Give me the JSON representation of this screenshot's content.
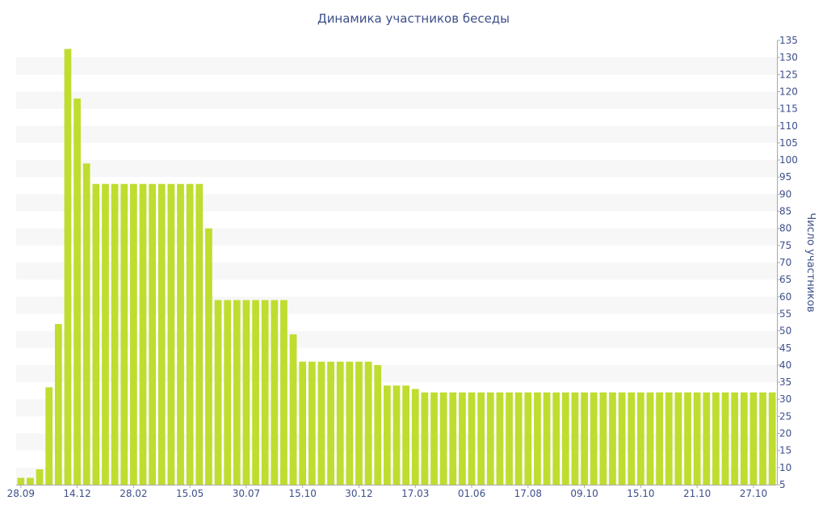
{
  "chart_data": {
    "type": "bar",
    "title": "Динамика участников беседы",
    "ylabel": "Число участников",
    "xlabel": "",
    "ylim": [
      5,
      135
    ],
    "y_ticks": [
      5,
      10,
      15,
      20,
      25,
      30,
      35,
      40,
      45,
      50,
      55,
      60,
      65,
      70,
      75,
      80,
      85,
      90,
      95,
      100,
      105,
      110,
      115,
      120,
      125,
      130,
      135
    ],
    "x_tick_labels": [
      {
        "label": "28.09",
        "index": 0
      },
      {
        "label": "14.12",
        "index": 6
      },
      {
        "label": "28.02",
        "index": 12
      },
      {
        "label": "15.05",
        "index": 18
      },
      {
        "label": "30.07",
        "index": 24
      },
      {
        "label": "15.10",
        "index": 30
      },
      {
        "label": "30.12",
        "index": 36
      },
      {
        "label": "17.03",
        "index": 42
      },
      {
        "label": "01.06",
        "index": 48
      },
      {
        "label": "17.08",
        "index": 54
      },
      {
        "label": "09.10",
        "index": 60
      },
      {
        "label": "15.10",
        "index": 66
      },
      {
        "label": "21.10",
        "index": 72
      },
      {
        "label": "27.10",
        "index": 78
      }
    ],
    "y_axis_position": "right",
    "grid": "alternating horizontal bands",
    "legend": "none",
    "colors": {
      "bar": "#bedd2f",
      "band": "#f7f7f7",
      "text": "#3d4f8a",
      "axis": "#aaaaaa"
    },
    "values": [
      7,
      7,
      9.5,
      33.5,
      52,
      132.5,
      118,
      99,
      93,
      93,
      93,
      93,
      93,
      93,
      93,
      93,
      93,
      93,
      93,
      93,
      80,
      59,
      59,
      59,
      59,
      59,
      59,
      59,
      59,
      49,
      41,
      41,
      41,
      41,
      41,
      41,
      41,
      41,
      40,
      34,
      34,
      34,
      33,
      32,
      32,
      32,
      32,
      32,
      32,
      32,
      32,
      32,
      32,
      32,
      32,
      32,
      32,
      32,
      32,
      32,
      32,
      32,
      32,
      32,
      32,
      32,
      32,
      32,
      32,
      32,
      32,
      32,
      32,
      32,
      32,
      32,
      32,
      32,
      32,
      32,
      32
    ]
  }
}
